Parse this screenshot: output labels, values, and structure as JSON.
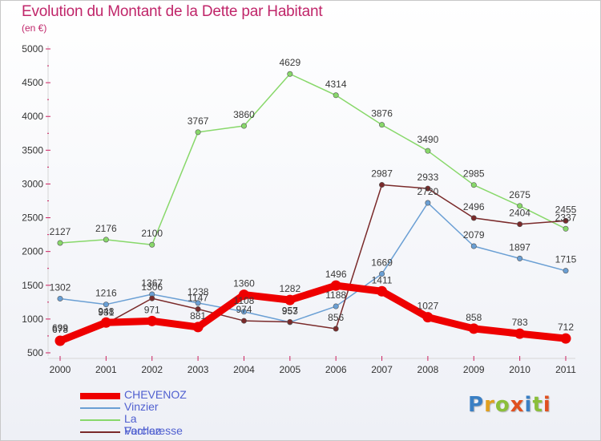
{
  "title": "Evolution du Montant de la Dette par Habitant",
  "subtitle": "(en €)",
  "logo": {
    "text": "Proxiti",
    "letter_colors": [
      "#3a7fc4",
      "#e0a020",
      "#8bbf3a",
      "#e05020",
      "#3a7fc4",
      "#8bbf3a",
      "#e05020"
    ]
  },
  "chart_data": {
    "type": "line",
    "x": [
      "2000",
      "2001",
      "2002",
      "2003",
      "2004",
      "2005",
      "2006",
      "2007",
      "2008",
      "2009",
      "2010",
      "2011"
    ],
    "ylim": [
      500,
      5000
    ],
    "yticks": [
      500,
      1000,
      1500,
      2000,
      2500,
      3000,
      3500,
      4000,
      4500,
      5000
    ],
    "grid": false,
    "legend_position": "bottom-left",
    "series": [
      {
        "name": "CHEVENOZ",
        "color": "#ee0000",
        "highlight": true,
        "values": [
          678,
          948,
          971,
          881,
          1360,
          1282,
          1496,
          1411,
          1027,
          858,
          783,
          712
        ],
        "labels": [
          "678",
          "948",
          "971",
          "881",
          "1360",
          "1282",
          "1496",
          "1411",
          "1027",
          "858",
          "783",
          "712"
        ]
      },
      {
        "name": "Vinzier",
        "color": "#6a9fd4",
        "values": [
          1302,
          1216,
          1367,
          1238,
          1108,
          953,
          1188,
          1669,
          2720,
          2079,
          1897,
          1715
        ],
        "labels": [
          "1302",
          "1216",
          "1367",
          "1238",
          "1108",
          "953",
          "1188",
          "1669",
          "2720",
          "2079",
          "1897",
          "1715"
        ]
      },
      {
        "name": "La Forclaz",
        "color": "#88d86a",
        "values": [
          2127,
          2176,
          2100,
          3767,
          3860,
          4629,
          4314,
          3876,
          3490,
          2985,
          2675,
          2337
        ],
        "labels": [
          "2127",
          "2176",
          "2100",
          "3767",
          "3860",
          "4629",
          "4314",
          "3876",
          "3490",
          "2985",
          "2675",
          "2337"
        ]
      },
      {
        "name": "Vacheresse",
        "color": "#7a2a2a",
        "values": [
          699,
          931,
          1306,
          1147,
          974,
          957,
          856,
          2987,
          2933,
          2496,
          2404,
          2455
        ],
        "labels": [
          "699",
          "931",
          "1306",
          "1147",
          "974",
          "957",
          "856",
          "2987",
          "2933",
          "2496",
          "2404",
          "2455"
        ]
      }
    ]
  }
}
